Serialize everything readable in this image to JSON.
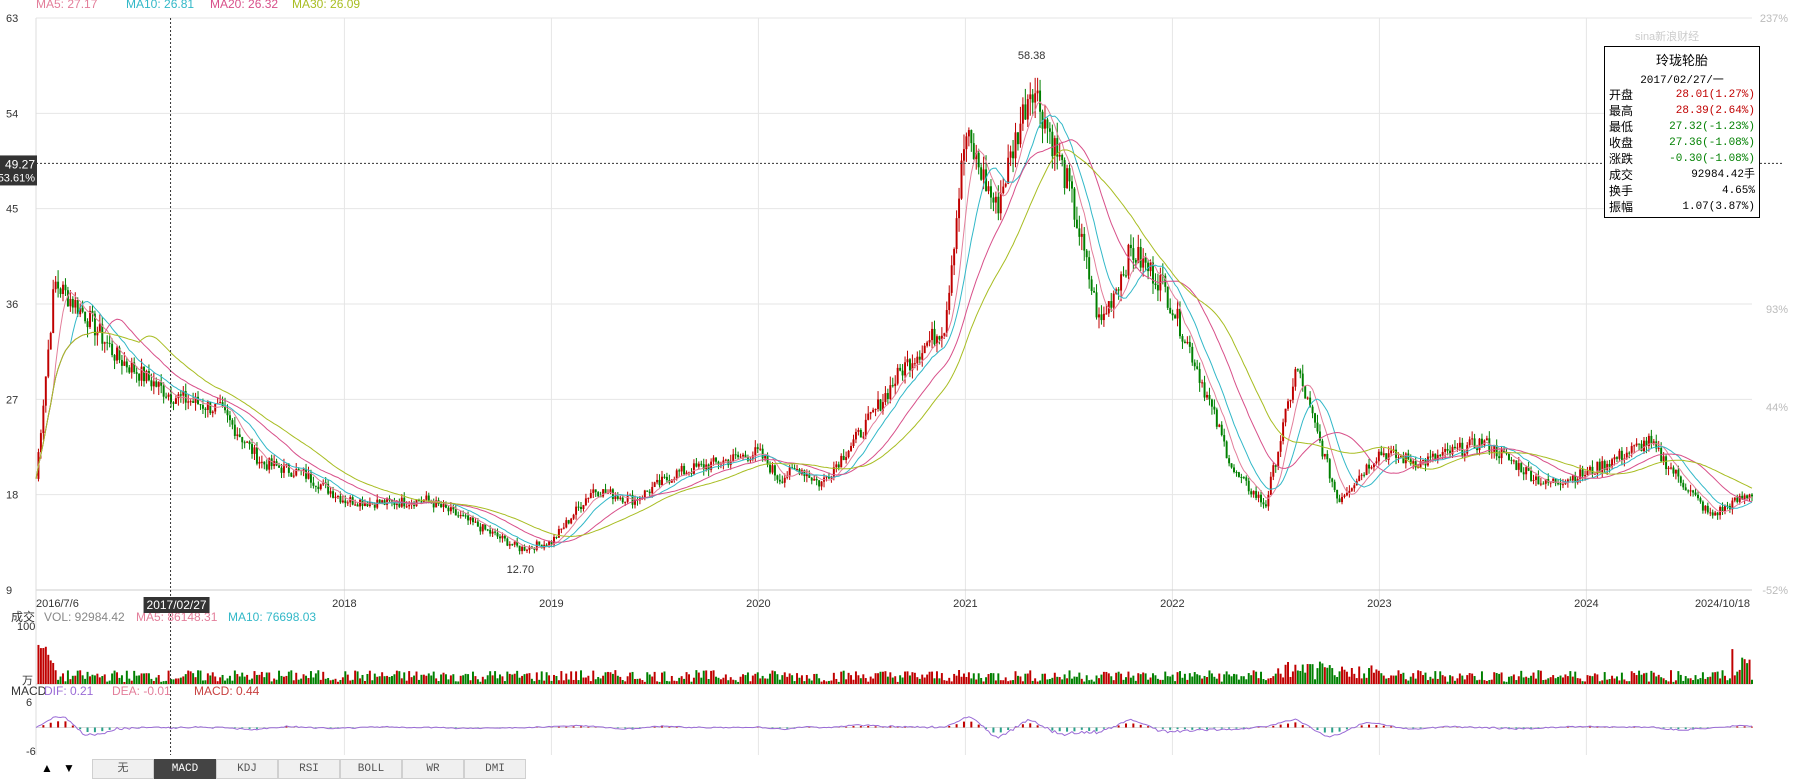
{
  "chart_data": [
    {
      "type": "candlestick",
      "title": "",
      "legend": [
        {
          "label": "MA5: 27.17",
          "color": "#e37e9a"
        },
        {
          "label": "MA10: 26.81",
          "color": "#32b8c8"
        },
        {
          "label": "MA20: 26.32",
          "color": "#d8508a"
        },
        {
          "label": "MA30: 26.09",
          "color": "#a8bd22"
        }
      ],
      "ylim": [
        9,
        63
      ],
      "y_ticks": [
        "63",
        "54",
        "45",
        "36",
        "27",
        "18",
        "9"
      ],
      "right_pct_ticks": [
        "237%",
        "93%",
        "44%",
        "-52%"
      ],
      "x_ticks": [
        "2016/7/6",
        "2018",
        "2019",
        "2020",
        "2021",
        "2022",
        "2023",
        "2024",
        "2024/10/18"
      ],
      "series": [
        {
          "name": "close",
          "x": [
            2016.51,
            2016.6,
            2016.75,
            2016.9,
            2017.16,
            2017.4,
            2017.6,
            2017.8,
            2018.0,
            2018.2,
            2018.4,
            2018.6,
            2018.85,
            2019.0,
            2019.2,
            2019.4,
            2019.6,
            2019.8,
            2020.0,
            2020.1,
            2020.2,
            2020.3,
            2020.5,
            2020.7,
            2020.9,
            2021.0,
            2021.15,
            2021.32,
            2021.5,
            2021.65,
            2021.8,
            2021.95,
            2022.1,
            2022.3,
            2022.45,
            2022.6,
            2022.8,
            2023.0,
            2023.2,
            2023.5,
            2023.8,
            2024.0,
            2024.3,
            2024.6,
            2024.8
          ],
          "values": [
            19.5,
            38,
            35,
            31,
            27.4,
            26,
            21,
            20,
            17.5,
            17.2,
            17.5,
            15.5,
            12.9,
            13.5,
            18.5,
            17.5,
            20,
            21,
            22,
            19.5,
            20.5,
            19,
            24,
            30,
            34,
            52,
            45,
            57,
            47,
            34,
            41,
            38,
            31,
            20,
            17,
            30,
            17.5,
            22,
            21,
            23,
            19,
            20,
            23,
            16,
            18.2
          ]
        }
      ],
      "max_label": "58.38",
      "min_label": "12.70",
      "crosshair_value": "49.27",
      "crosshair_pct": "53.61%",
      "crosshair_date": "2017/02/27"
    },
    {
      "type": "bar",
      "title": "成交",
      "legend": [
        {
          "label": "VOL: 92984.42",
          "color": "#888888"
        },
        {
          "label": "MA5: 86148.31",
          "color": "#e37e9a"
        },
        {
          "label": "MA10: 76698.03",
          "color": "#32b8c8"
        }
      ],
      "y_ticks": [
        "100",
        "万"
      ]
    },
    {
      "type": "line",
      "title": "MACD",
      "legend": [
        {
          "label": "DIF: 0.21",
          "color": "#9a6bd6"
        },
        {
          "label": "DEA: -0.01",
          "color": "#e37e9a"
        },
        {
          "label": "MACD: 0.44",
          "color": "#c84040"
        }
      ],
      "y_ticks": [
        "6",
        "-6"
      ]
    }
  ],
  "info_box": {
    "title": "玲珑轮胎",
    "date": "2017/02/27/一",
    "rows": [
      {
        "k": "开盘",
        "v": "28.01(1.27%)",
        "color": "#c00000"
      },
      {
        "k": "最高",
        "v": "28.39(2.64%)",
        "color": "#c00000"
      },
      {
        "k": "最低",
        "v": "27.32(-1.23%)",
        "color": "#008000"
      },
      {
        "k": "收盘",
        "v": "27.36(-1.08%)",
        "color": "#008000"
      },
      {
        "k": "涨跌",
        "v": "-0.30(-1.08%)",
        "color": "#008000"
      },
      {
        "k": "成交",
        "v": "92984.42手",
        "color": "#000000"
      },
      {
        "k": "换手",
        "v": "4.65%",
        "color": "#000000"
      },
      {
        "k": "振幅",
        "v": "1.07(3.87%)",
        "color": "#000000"
      }
    ]
  },
  "watermark": "sina新浪财经",
  "tabs": [
    "无",
    "MACD",
    "KDJ",
    "RSI",
    "BOLL",
    "WR",
    "DMI"
  ],
  "active_tab": "MACD",
  "nav": {
    "up": "▲",
    "down": "▼"
  },
  "colors": {
    "up": "#c00000",
    "down": "#008000",
    "grid": "#e6e6e6",
    "axis_text": "#333333",
    "pct_text": "#bbbbbb"
  }
}
